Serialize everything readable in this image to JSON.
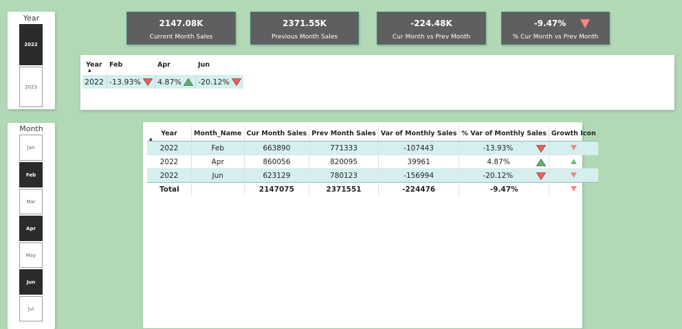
{
  "year_slicer": {
    "title": "Year",
    "items": [
      {
        "label": "2022",
        "selected": true
      },
      {
        "label": "2023",
        "selected": false
      }
    ]
  },
  "month_slicer": {
    "title": "Month",
    "items": [
      {
        "label": "Jan",
        "selected": false
      },
      {
        "label": "Feb",
        "selected": true
      },
      {
        "label": "Mar",
        "selected": false
      },
      {
        "label": "Apr",
        "selected": true
      },
      {
        "label": "May",
        "selected": false
      },
      {
        "label": "Jun",
        "selected": true
      },
      {
        "label": "Jul",
        "selected": false
      }
    ]
  },
  "kpis": [
    {
      "value": "2147.08K",
      "label": "Current Month Sales"
    },
    {
      "value": "2371.55K",
      "label": "Previous Month Sales"
    },
    {
      "value": "-224.48K",
      "label": "Cur Month vs Prev Month"
    },
    {
      "value": "-9.47%",
      "label": "% Cur Month vs Prev Month",
      "icon": "down-triangle-icon"
    }
  ],
  "matrix": {
    "headers": {
      "year": "Year",
      "months": [
        "Feb",
        "Apr",
        "Jun"
      ]
    },
    "row": {
      "year": "2022",
      "cells": [
        {
          "value": "-13.93%",
          "icon": "down-triangle-icon"
        },
        {
          "value": "4.87%",
          "icon": "up-triangle-icon"
        },
        {
          "value": "-20.12%",
          "icon": "down-triangle-icon"
        }
      ]
    }
  },
  "table": {
    "headers": [
      "Year",
      "Month_Name",
      "Cur Month Sales",
      "Prev Month Sales",
      "Var of Monthly Sales",
      "% Var of Monthly Sales",
      "Growth Icon"
    ],
    "rows": [
      {
        "year": "2022",
        "month": "Feb",
        "cur": "663890",
        "prev": "771333",
        "var": "-107443",
        "pct": "-13.93%",
        "dir": "down"
      },
      {
        "year": "2022",
        "month": "Apr",
        "cur": "860056",
        "prev": "820095",
        "var": "39961",
        "pct": "4.87%",
        "dir": "up"
      },
      {
        "year": "2022",
        "month": "Jun",
        "cur": "623129",
        "prev": "780123",
        "var": "-156994",
        "pct": "-20.12%",
        "dir": "down"
      }
    ],
    "total": {
      "label": "Total",
      "cur": "2147075",
      "prev": "2371551",
      "var": "-224476",
      "pct": "-9.47%",
      "dir": "down"
    }
  },
  "colors": {
    "background": "#b2d9b6",
    "down": "#e8625c",
    "up": "#3ea15a",
    "row_highlight": "#d5efef",
    "kpi_fill": "#5f5f5f"
  }
}
